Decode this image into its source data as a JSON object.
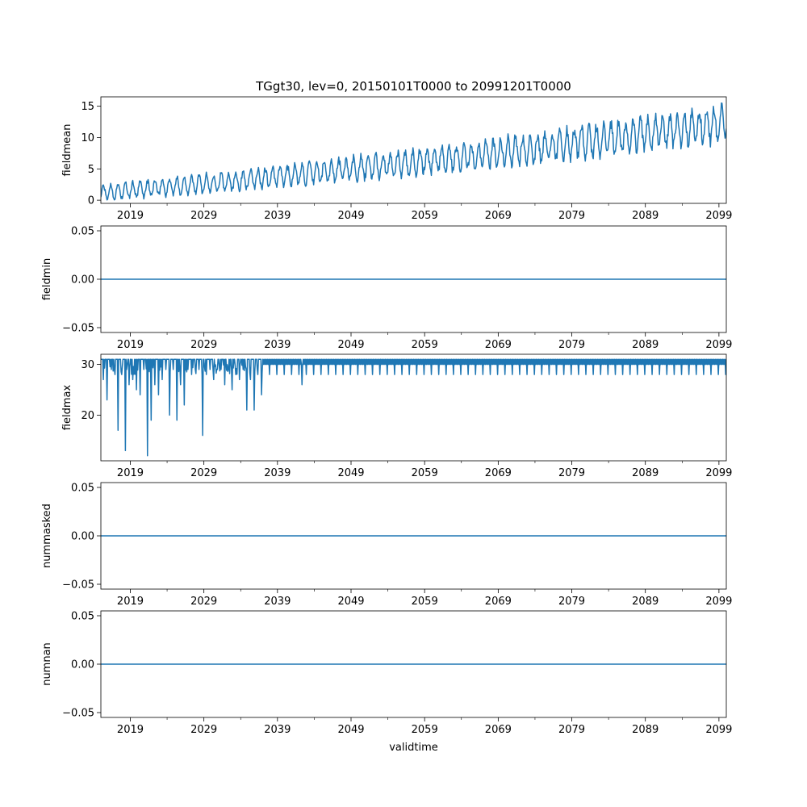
{
  "chart_data": {
    "type": "line",
    "title": "TGgt30, lev=0, 20150101T0000 to 20991201T0000",
    "xlabel": "validtime",
    "line_color": "#1f77b4",
    "x_range": [
      2015.0,
      2100.0
    ],
    "x_major_ticks": [
      2019,
      2029,
      2039,
      2049,
      2059,
      2069,
      2079,
      2089,
      2099
    ],
    "x_tick_labels": [
      "2019",
      "2029",
      "2039",
      "2049",
      "2059",
      "2069",
      "2079",
      "2089",
      "2099"
    ],
    "panels": [
      {
        "ylabel": "fieldmean",
        "ylim": [
          -0.5,
          16.5
        ],
        "yticks": [
          0,
          5,
          10,
          15
        ],
        "ytick_labels": [
          "0",
          "5",
          "10",
          "15"
        ],
        "series_kind": "seasonal_trend",
        "trend_start": 1.2,
        "trend_end": 12.3,
        "seasonal_amplitude_start": 1.1,
        "seasonal_amplitude_end": 2.6,
        "observed_max": 15.5
      },
      {
        "ylabel": "fieldmin",
        "ylim": [
          -0.055,
          0.055
        ],
        "yticks": [
          -0.05,
          0.0,
          0.05
        ],
        "ytick_labels": [
          "−0.05",
          "0.00",
          "0.05"
        ],
        "series_kind": "constant",
        "value": 0.0
      },
      {
        "ylabel": "fieldmax",
        "ylim": [
          11.0,
          32.0
        ],
        "yticks": [
          20,
          30
        ],
        "ytick_labels": [
          "20",
          "30"
        ],
        "series_kind": "max_with_dips",
        "base_value": 31.0,
        "band_low": 30.0,
        "band_start_year": 2037.0,
        "dips": [
          {
            "t": 2015.3,
            "v": 27.0
          },
          {
            "t": 2015.8,
            "v": 23.0
          },
          {
            "t": 2016.4,
            "v": 29.0
          },
          {
            "t": 2016.9,
            "v": 28.0
          },
          {
            "t": 2017.3,
            "v": 17.0
          },
          {
            "t": 2017.8,
            "v": 28.0
          },
          {
            "t": 2018.3,
            "v": 13.0
          },
          {
            "t": 2018.8,
            "v": 26.0
          },
          {
            "t": 2019.3,
            "v": 27.0
          },
          {
            "t": 2019.8,
            "v": 25.0
          },
          {
            "t": 2020.3,
            "v": 24.0
          },
          {
            "t": 2020.8,
            "v": 29.0
          },
          {
            "t": 2021.3,
            "v": 12.0
          },
          {
            "t": 2021.8,
            "v": 19.0
          },
          {
            "t": 2022.3,
            "v": 26.0
          },
          {
            "t": 2022.8,
            "v": 24.0
          },
          {
            "t": 2023.3,
            "v": 27.0
          },
          {
            "t": 2023.8,
            "v": 29.0
          },
          {
            "t": 2024.3,
            "v": 20.0
          },
          {
            "t": 2024.8,
            "v": 29.0
          },
          {
            "t": 2025.3,
            "v": 19.0
          },
          {
            "t": 2025.8,
            "v": 26.0
          },
          {
            "t": 2026.3,
            "v": 22.0
          },
          {
            "t": 2026.8,
            "v": 29.0
          },
          {
            "t": 2027.3,
            "v": 28.0
          },
          {
            "t": 2027.8,
            "v": 29.0
          },
          {
            "t": 2028.3,
            "v": 29.0
          },
          {
            "t": 2028.8,
            "v": 16.0
          },
          {
            "t": 2029.3,
            "v": 28.0
          },
          {
            "t": 2029.8,
            "v": 29.0
          },
          {
            "t": 2030.3,
            "v": 27.0
          },
          {
            "t": 2030.8,
            "v": 29.0
          },
          {
            "t": 2031.3,
            "v": 29.0
          },
          {
            "t": 2031.8,
            "v": 26.0
          },
          {
            "t": 2032.3,
            "v": 29.0
          },
          {
            "t": 2032.8,
            "v": 25.0
          },
          {
            "t": 2033.3,
            "v": 28.0
          },
          {
            "t": 2033.8,
            "v": 27.0
          },
          {
            "t": 2034.3,
            "v": 29.0
          },
          {
            "t": 2034.8,
            "v": 21.0
          },
          {
            "t": 2035.3,
            "v": 27.0
          },
          {
            "t": 2035.8,
            "v": 21.0
          },
          {
            "t": 2036.3,
            "v": 28.0
          },
          {
            "t": 2036.8,
            "v": 24.0
          },
          {
            "t": 2042.3,
            "v": 26.0
          }
        ]
      },
      {
        "ylabel": "nummasked",
        "ylim": [
          -0.055,
          0.055
        ],
        "yticks": [
          -0.05,
          0.0,
          0.05
        ],
        "ytick_labels": [
          "−0.05",
          "0.00",
          "0.05"
        ],
        "series_kind": "constant",
        "value": 0.0
      },
      {
        "ylabel": "numnan",
        "ylim": [
          -0.055,
          0.055
        ],
        "yticks": [
          -0.05,
          0.0,
          0.05
        ],
        "ytick_labels": [
          "−0.05",
          "0.00",
          "0.05"
        ],
        "series_kind": "constant",
        "value": 0.0
      }
    ]
  }
}
